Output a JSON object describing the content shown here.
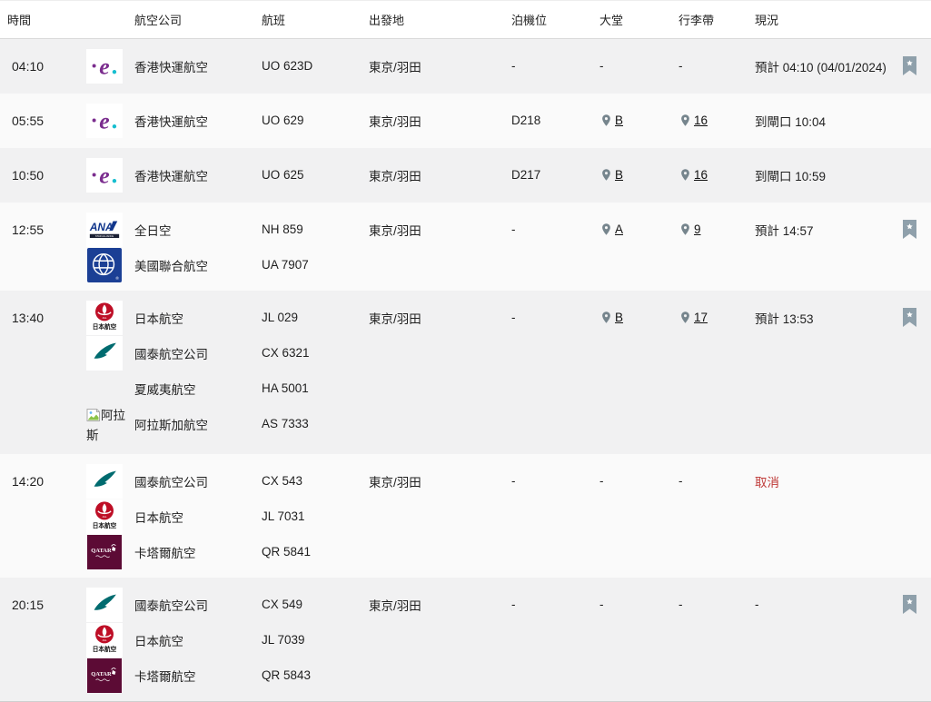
{
  "header": {
    "columns": [
      "時間",
      "航空公司",
      "航班",
      "出發地",
      "泊機位",
      "大堂",
      "行李帶",
      "現況"
    ]
  },
  "colors": {
    "row_gray": "#f1f1f2",
    "row_white": "#fafafa",
    "pin_gray": "#76858D",
    "bookmark_gray": "#8FA0AB",
    "status_cancel_red": "#BF3A38",
    "text": "#1f1f1f"
  },
  "rows": [
    {
      "time": "04:10",
      "shade": "gray",
      "flights": [
        {
          "logo": "hk-express-logo",
          "airline": "香港快運航空",
          "flight_no": "UO 623D"
        }
      ],
      "origin": "東京/羽田",
      "stand": "-",
      "hall": {
        "value": "-",
        "pin": false
      },
      "belt": {
        "value": "-",
        "pin": false
      },
      "status": {
        "text": "預計 04:10 (04/01/2024)",
        "cancelled": false
      },
      "bookmark": true
    },
    {
      "time": "05:55",
      "shade": "white",
      "flights": [
        {
          "logo": "hk-express-logo",
          "airline": "香港快運航空",
          "flight_no": "UO 629"
        }
      ],
      "origin": "東京/羽田",
      "stand": "D218",
      "hall": {
        "value": "B",
        "pin": true
      },
      "belt": {
        "value": "16",
        "pin": true
      },
      "status": {
        "text": "到閘口 10:04",
        "cancelled": false
      },
      "bookmark": false
    },
    {
      "time": "10:50",
      "shade": "gray",
      "flights": [
        {
          "logo": "hk-express-logo",
          "airline": "香港快運航空",
          "flight_no": "UO 625"
        }
      ],
      "origin": "東京/羽田",
      "stand": "D217",
      "hall": {
        "value": "B",
        "pin": true
      },
      "belt": {
        "value": "16",
        "pin": true
      },
      "status": {
        "text": "到閘口 10:59",
        "cancelled": false
      },
      "bookmark": false
    },
    {
      "time": "12:55",
      "shade": "white",
      "flights": [
        {
          "logo": "ana-logo",
          "airline": "全日空",
          "flight_no": "NH 859"
        },
        {
          "logo": "united-logo",
          "airline": "美國聯合航空",
          "flight_no": "UA 7907"
        }
      ],
      "origin": "東京/羽田",
      "stand": "-",
      "hall": {
        "value": "A",
        "pin": true
      },
      "belt": {
        "value": "9",
        "pin": true
      },
      "status": {
        "text": "預計 14:57",
        "cancelled": false
      },
      "bookmark": true
    },
    {
      "time": "13:40",
      "shade": "gray",
      "flights": [
        {
          "logo": "jal-logo",
          "airline": "日本航空",
          "flight_no": "JL 029"
        },
        {
          "logo": "cathay-logo",
          "airline": "國泰航空公司",
          "flight_no": "CX 6321"
        },
        {
          "logo": null,
          "airline": "夏威夷航空",
          "flight_no": "HA 5001"
        },
        {
          "logo": "broken-image-icon",
          "logo_alt": "阿拉斯",
          "airline": "阿拉斯加航空",
          "flight_no": "AS 7333"
        }
      ],
      "origin": "東京/羽田",
      "stand": "-",
      "hall": {
        "value": "B",
        "pin": true
      },
      "belt": {
        "value": "17",
        "pin": true
      },
      "status": {
        "text": "預計 13:53",
        "cancelled": false
      },
      "bookmark": true
    },
    {
      "time": "14:20",
      "shade": "white",
      "flights": [
        {
          "logo": "cathay-logo",
          "airline": "國泰航空公司",
          "flight_no": "CX 543"
        },
        {
          "logo": "jal-logo",
          "airline": "日本航空",
          "flight_no": "JL 7031"
        },
        {
          "logo": "qatar-logo",
          "airline": "卡塔爾航空",
          "flight_no": "QR 5841"
        }
      ],
      "origin": "東京/羽田",
      "stand": "-",
      "hall": {
        "value": "-",
        "pin": false
      },
      "belt": {
        "value": "-",
        "pin": false
      },
      "status": {
        "text": "取消",
        "cancelled": true
      },
      "bookmark": false
    },
    {
      "time": "20:15",
      "shade": "gray",
      "flights": [
        {
          "logo": "cathay-logo",
          "airline": "國泰航空公司",
          "flight_no": "CX 549"
        },
        {
          "logo": "jal-logo",
          "airline": "日本航空",
          "flight_no": "JL 7039"
        },
        {
          "logo": "qatar-logo",
          "airline": "卡塔爾航空",
          "flight_no": "QR 5843"
        }
      ],
      "origin": "東京/羽田",
      "stand": "-",
      "hall": {
        "value": "-",
        "pin": false
      },
      "belt": {
        "value": "-",
        "pin": false
      },
      "status": {
        "text": "-",
        "cancelled": false
      },
      "bookmark": true
    }
  ]
}
